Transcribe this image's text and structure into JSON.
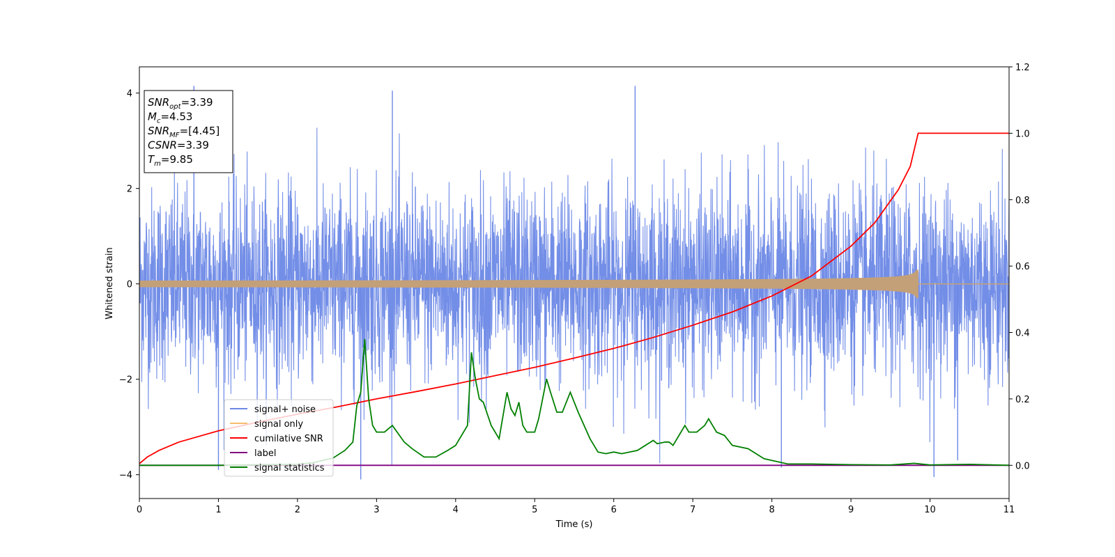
{
  "chart_data": {
    "type": "line",
    "xlabel": "Time (s)",
    "ylabel": "Whitened strain",
    "xlim": [
      0,
      11
    ],
    "ylim": [
      -4.5,
      4.55
    ],
    "y2lim": [
      -0.1,
      1.2
    ],
    "x_ticks": [
      0,
      1,
      2,
      3,
      4,
      5,
      6,
      7,
      8,
      9,
      10,
      11
    ],
    "y_ticks": [
      -4,
      -2,
      0,
      2,
      4
    ],
    "y2_ticks": [
      0.0,
      0.2,
      0.4,
      0.6,
      0.8,
      1.0,
      1.2
    ],
    "grid": false,
    "legend_position": "lower-left",
    "info_box": {
      "position": "upper-left",
      "lines": [
        {
          "base": "SNR",
          "sub": "opt",
          "value": "=3.39"
        },
        {
          "base": "M",
          "sub": "c",
          "value": "=4.53"
        },
        {
          "base": "SNR",
          "sub": "MF",
          "value": "=[4.45]"
        },
        {
          "base": "CSNR",
          "sub": "",
          "value": "=3.39"
        },
        {
          "base": "T",
          "sub": "m",
          "value": "=9.85"
        }
      ]
    },
    "series": [
      {
        "name": "signal+ noise",
        "axis": "left",
        "color": "#6b88e6",
        "kind": "noise",
        "std": 1.0,
        "x_range": [
          0,
          11
        ],
        "peaks": [
          [
            0.69,
            4.15
          ],
          [
            6.27,
            4.15
          ],
          [
            3.2,
            4.05
          ],
          [
            1.0,
            -3.9
          ],
          [
            2.8,
            -4.1
          ],
          [
            10.05,
            -4.05
          ],
          [
            10.35,
            -3.7
          ],
          [
            8.12,
            -3.85
          ]
        ]
      },
      {
        "name": "signal only",
        "axis": "left",
        "color": "#f5bd6c",
        "kind": "chirp",
        "t_merger": 9.85,
        "peak_amplitude": 0.32,
        "x_range": [
          0,
          11
        ]
      },
      {
        "name": "cumilative SNR",
        "axis": "right",
        "color": "#ff0000",
        "x": [
          0,
          0.1,
          0.25,
          0.5,
          1,
          1.5,
          2,
          2.5,
          3,
          3.5,
          4,
          4.5,
          5,
          5.5,
          6,
          6.5,
          7,
          7.5,
          8,
          8.5,
          9,
          9.3,
          9.6,
          9.75,
          9.85,
          10,
          11
        ],
        "y": [
          0.005,
          0.025,
          0.045,
          0.07,
          0.104,
          0.13,
          0.154,
          0.176,
          0.2,
          0.222,
          0.245,
          0.27,
          0.295,
          0.323,
          0.352,
          0.385,
          0.422,
          0.462,
          0.51,
          0.57,
          0.66,
          0.73,
          0.83,
          0.9,
          1.0,
          1.0,
          1.0
        ]
      },
      {
        "name": "label",
        "axis": "right",
        "color": "#800080",
        "x": [
          0,
          11
        ],
        "y": [
          0,
          0
        ]
      },
      {
        "name": "signal statistics",
        "axis": "right",
        "color": "#008000",
        "x": [
          0,
          1,
          1.5,
          2.0,
          2.2,
          2.45,
          2.6,
          2.7,
          2.75,
          2.8,
          2.85,
          2.9,
          2.95,
          3.0,
          3.1,
          3.2,
          3.35,
          3.45,
          3.6,
          3.75,
          3.9,
          4.0,
          4.15,
          4.2,
          4.25,
          4.3,
          4.35,
          4.45,
          4.55,
          4.65,
          4.7,
          4.75,
          4.8,
          4.85,
          4.9,
          5.0,
          5.05,
          5.15,
          5.2,
          5.28,
          5.35,
          5.45,
          5.55,
          5.7,
          5.8,
          5.9,
          6.0,
          6.1,
          6.2,
          6.3,
          6.4,
          6.5,
          6.55,
          6.65,
          6.7,
          6.75,
          6.85,
          6.9,
          6.95,
          7.05,
          7.15,
          7.2,
          7.3,
          7.4,
          7.5,
          7.7,
          7.9,
          8.2,
          8.5,
          9.0,
          9.5,
          9.8,
          10.0,
          10.5,
          11
        ],
        "y": [
          0,
          0.0,
          0.002,
          0.003,
          0.008,
          0.022,
          0.045,
          0.07,
          0.18,
          0.22,
          0.38,
          0.2,
          0.12,
          0.1,
          0.1,
          0.12,
          0.07,
          0.05,
          0.025,
          0.025,
          0.045,
          0.06,
          0.12,
          0.34,
          0.26,
          0.2,
          0.19,
          0.12,
          0.08,
          0.22,
          0.17,
          0.15,
          0.19,
          0.12,
          0.1,
          0.1,
          0.14,
          0.26,
          0.22,
          0.16,
          0.16,
          0.22,
          0.16,
          0.08,
          0.04,
          0.035,
          0.04,
          0.035,
          0.04,
          0.045,
          0.06,
          0.075,
          0.065,
          0.07,
          0.07,
          0.06,
          0.1,
          0.12,
          0.1,
          0.1,
          0.12,
          0.14,
          0.1,
          0.09,
          0.06,
          0.05,
          0.02,
          0.004,
          0.004,
          0.002,
          0.001,
          0.006,
          0.001,
          0.003,
          0
        ]
      }
    ]
  }
}
